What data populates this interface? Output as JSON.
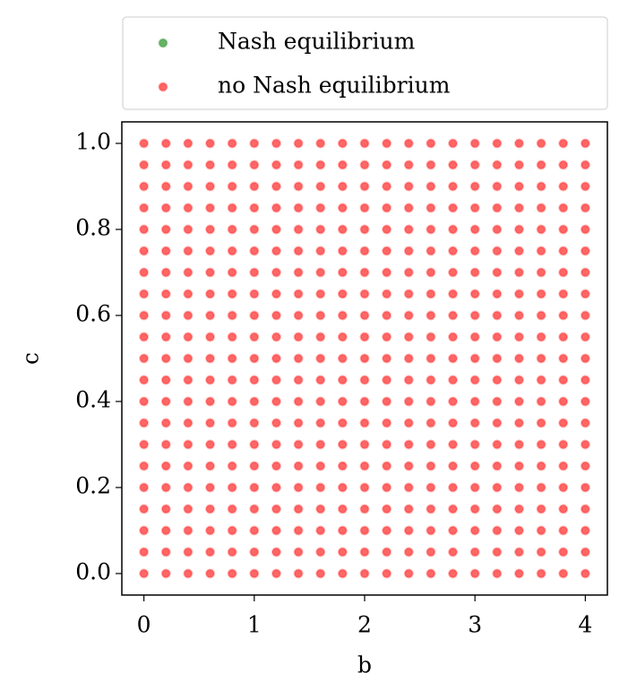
{
  "chart_data": {
    "type": "scatter",
    "xlabel": "b",
    "ylabel": "c",
    "xlim": [
      -0.2,
      4.2
    ],
    "ylim": [
      -0.05,
      1.05
    ],
    "xticks": [
      0,
      1,
      2,
      3,
      4
    ],
    "yticks": [
      {
        "value": 0,
        "label": "0.0"
      },
      0.2,
      0.4,
      0.6,
      0.8,
      {
        "value": 1,
        "label": "1.0"
      }
    ],
    "legend": "top",
    "series": [
      {
        "name": "Nash equilibrium",
        "color": "green",
        "x": [],
        "y": []
      },
      {
        "name": "no Nash equilibrium",
        "color": "red",
        "x": [
          0,
          0.2,
          0.4,
          0.6,
          0.8,
          1,
          1.2,
          1.4,
          1.6,
          1.8,
          2,
          2.2,
          2.4,
          2.6,
          2.8,
          3,
          3.2,
          3.4,
          3.6,
          3.8,
          4,
          0,
          0.2,
          0.4,
          0.6,
          0.8,
          1,
          1.2,
          1.4,
          1.6,
          1.8,
          2,
          2.2,
          2.4,
          2.6,
          2.8,
          3,
          3.2,
          3.4,
          3.6,
          3.8,
          4,
          0,
          0.2,
          0.4,
          0.6,
          0.8,
          1,
          1.2,
          1.4,
          1.6,
          1.8,
          2,
          2.2,
          2.4,
          2.6,
          2.8,
          3,
          3.2,
          3.4,
          3.6,
          3.8,
          4,
          0,
          0.2,
          0.4,
          0.6,
          0.8,
          1,
          1.2,
          1.4,
          1.6,
          1.8,
          2,
          2.2,
          2.4,
          2.6,
          2.8,
          3,
          3.2,
          3.4,
          3.6,
          3.8,
          4,
          0,
          0.2,
          0.4,
          0.6,
          0.8,
          1,
          1.2,
          1.4,
          1.6,
          1.8,
          2,
          2.2,
          2.4,
          2.6,
          2.8,
          3,
          3.2,
          3.4,
          3.6,
          3.8,
          4,
          0,
          0.2,
          0.4,
          0.6,
          0.8,
          1,
          1.2,
          1.4,
          1.6,
          1.8,
          2,
          2.2,
          2.4,
          2.6,
          2.8,
          3,
          3.2,
          3.4,
          3.6,
          3.8,
          4,
          0,
          0.2,
          0.4,
          0.6,
          0.8,
          1,
          1.2,
          1.4,
          1.6,
          1.8,
          2,
          2.2,
          2.4,
          2.6,
          2.8,
          3,
          3.2,
          3.4,
          3.6,
          3.8,
          4,
          0,
          0.2,
          0.4,
          0.6,
          0.8,
          1,
          1.2,
          1.4,
          1.6,
          1.8,
          2,
          2.2,
          2.4,
          2.6,
          2.8,
          3,
          3.2,
          3.4,
          3.6,
          3.8,
          4,
          0,
          0.2,
          0.4,
          0.6,
          0.8,
          1,
          1.2,
          1.4,
          1.6,
          1.8,
          2,
          2.2,
          2.4,
          2.6,
          2.8,
          3,
          3.2,
          3.4,
          3.6,
          3.8,
          4,
          0,
          0.2,
          0.4,
          0.6,
          0.8,
          1,
          1.2,
          1.4,
          1.6,
          1.8,
          2,
          2.2,
          2.4,
          2.6,
          2.8,
          3,
          3.2,
          3.4,
          3.6,
          3.8,
          4,
          0,
          0.2,
          0.4,
          0.6,
          0.8,
          1,
          1.2,
          1.4,
          1.6,
          1.8,
          2,
          2.2,
          2.4,
          2.6,
          2.8,
          3,
          3.2,
          3.4,
          3.6,
          3.8,
          4,
          0,
          0.2,
          0.4,
          0.6,
          0.8,
          1,
          1.2,
          1.4,
          1.6,
          1.8,
          2,
          2.2,
          2.4,
          2.6,
          2.8,
          3,
          3.2,
          3.4,
          3.6,
          3.8,
          4,
          0,
          0.2,
          0.4,
          0.6,
          0.8,
          1,
          1.2,
          1.4,
          1.6,
          1.8,
          2,
          2.2,
          2.4,
          2.6,
          2.8,
          3,
          3.2,
          3.4,
          3.6,
          3.8,
          4,
          0,
          0.2,
          0.4,
          0.6,
          0.8,
          1,
          1.2,
          1.4,
          1.6,
          1.8,
          2,
          2.2,
          2.4,
          2.6,
          2.8,
          3,
          3.2,
          3.4,
          3.6,
          3.8,
          4,
          0,
          0.2,
          0.4,
          0.6,
          0.8,
          1,
          1.2,
          1.4,
          1.6,
          1.8,
          2,
          2.2,
          2.4,
          2.6,
          2.8,
          3,
          3.2,
          3.4,
          3.6,
          3.8,
          4,
          0,
          0.2,
          0.4,
          0.6,
          0.8,
          1,
          1.2,
          1.4,
          1.6,
          1.8,
          2,
          2.2,
          2.4,
          2.6,
          2.8,
          3,
          3.2,
          3.4,
          3.6,
          3.8,
          4,
          0,
          0.2,
          0.4,
          0.6,
          0.8,
          1,
          1.2,
          1.4,
          1.6,
          1.8,
          2,
          2.2,
          2.4,
          2.6,
          2.8,
          3,
          3.2,
          3.4,
          3.6,
          3.8,
          4,
          0,
          0.2,
          0.4,
          0.6,
          0.8,
          1,
          1.2,
          1.4,
          1.6,
          1.8,
          2,
          2.2,
          2.4,
          2.6,
          2.8,
          3,
          3.2,
          3.4,
          3.6,
          3.8,
          4,
          0,
          0.2,
          0.4,
          0.6,
          0.8,
          1,
          1.2,
          1.4,
          1.6,
          1.8,
          2,
          2.2,
          2.4,
          2.6,
          2.8,
          3,
          3.2,
          3.4,
          3.6,
          3.8,
          4,
          0,
          0.2,
          0.4,
          0.6,
          0.8,
          1,
          1.2,
          1.4,
          1.6,
          1.8,
          2,
          2.2,
          2.4,
          2.6,
          2.8,
          3,
          3.2,
          3.4,
          3.6,
          3.8,
          4,
          0,
          0.2,
          0.4,
          0.6,
          0.8,
          1,
          1.2,
          1.4,
          1.6,
          1.8,
          2,
          2.2,
          2.4,
          2.6,
          2.8,
          3,
          3.2,
          3.4,
          3.6,
          3.8,
          4
        ],
        "y": [
          0,
          0,
          0,
          0,
          0,
          0,
          0,
          0,
          0,
          0,
          0,
          0,
          0,
          0,
          0,
          0,
          0,
          0,
          0,
          0,
          0,
          0.05,
          0.05,
          0.05,
          0.05,
          0.05,
          0.05,
          0.05,
          0.05,
          0.05,
          0.05,
          0.05,
          0.05,
          0.05,
          0.05,
          0.05,
          0.05,
          0.05,
          0.05,
          0.05,
          0.05,
          0.05,
          0.1,
          0.1,
          0.1,
          0.1,
          0.1,
          0.1,
          0.1,
          0.1,
          0.1,
          0.1,
          0.1,
          0.1,
          0.1,
          0.1,
          0.1,
          0.1,
          0.1,
          0.1,
          0.1,
          0.1,
          0.1,
          0.15,
          0.15,
          0.15,
          0.15,
          0.15,
          0.15,
          0.15,
          0.15,
          0.15,
          0.15,
          0.15,
          0.15,
          0.15,
          0.15,
          0.15,
          0.15,
          0.15,
          0.15,
          0.15,
          0.15,
          0.15,
          0.2,
          0.2,
          0.2,
          0.2,
          0.2,
          0.2,
          0.2,
          0.2,
          0.2,
          0.2,
          0.2,
          0.2,
          0.2,
          0.2,
          0.2,
          0.2,
          0.2,
          0.2,
          0.2,
          0.2,
          0.2,
          0.25,
          0.25,
          0.25,
          0.25,
          0.25,
          0.25,
          0.25,
          0.25,
          0.25,
          0.25,
          0.25,
          0.25,
          0.25,
          0.25,
          0.25,
          0.25,
          0.25,
          0.25,
          0.25,
          0.25,
          0.25,
          0.3,
          0.3,
          0.3,
          0.3,
          0.3,
          0.3,
          0.3,
          0.3,
          0.3,
          0.3,
          0.3,
          0.3,
          0.3,
          0.3,
          0.3,
          0.3,
          0.3,
          0.3,
          0.3,
          0.3,
          0.3,
          0.35,
          0.35,
          0.35,
          0.35,
          0.35,
          0.35,
          0.35,
          0.35,
          0.35,
          0.35,
          0.35,
          0.35,
          0.35,
          0.35,
          0.35,
          0.35,
          0.35,
          0.35,
          0.35,
          0.35,
          0.35,
          0.4,
          0.4,
          0.4,
          0.4,
          0.4,
          0.4,
          0.4,
          0.4,
          0.4,
          0.4,
          0.4,
          0.4,
          0.4,
          0.4,
          0.4,
          0.4,
          0.4,
          0.4,
          0.4,
          0.4,
          0.4,
          0.45,
          0.45,
          0.45,
          0.45,
          0.45,
          0.45,
          0.45,
          0.45,
          0.45,
          0.45,
          0.45,
          0.45,
          0.45,
          0.45,
          0.45,
          0.45,
          0.45,
          0.45,
          0.45,
          0.45,
          0.45,
          0.5,
          0.5,
          0.5,
          0.5,
          0.5,
          0.5,
          0.5,
          0.5,
          0.5,
          0.5,
          0.5,
          0.5,
          0.5,
          0.5,
          0.5,
          0.5,
          0.5,
          0.5,
          0.5,
          0.5,
          0.5,
          0.55,
          0.55,
          0.55,
          0.55,
          0.55,
          0.55,
          0.55,
          0.55,
          0.55,
          0.55,
          0.55,
          0.55,
          0.55,
          0.55,
          0.55,
          0.55,
          0.55,
          0.55,
          0.55,
          0.55,
          0.55,
          0.6,
          0.6,
          0.6,
          0.6,
          0.6,
          0.6,
          0.6,
          0.6,
          0.6,
          0.6,
          0.6,
          0.6,
          0.6,
          0.6,
          0.6,
          0.6,
          0.6,
          0.6,
          0.6,
          0.6,
          0.6,
          0.65,
          0.65,
          0.65,
          0.65,
          0.65,
          0.65,
          0.65,
          0.65,
          0.65,
          0.65,
          0.65,
          0.65,
          0.65,
          0.65,
          0.65,
          0.65,
          0.65,
          0.65,
          0.65,
          0.65,
          0.65,
          0.7,
          0.7,
          0.7,
          0.7,
          0.7,
          0.7,
          0.7,
          0.7,
          0.7,
          0.7,
          0.7,
          0.7,
          0.7,
          0.7,
          0.7,
          0.7,
          0.7,
          0.7,
          0.7,
          0.7,
          0.7,
          0.75,
          0.75,
          0.75,
          0.75,
          0.75,
          0.75,
          0.75,
          0.75,
          0.75,
          0.75,
          0.75,
          0.75,
          0.75,
          0.75,
          0.75,
          0.75,
          0.75,
          0.75,
          0.75,
          0.75,
          0.75,
          0.8,
          0.8,
          0.8,
          0.8,
          0.8,
          0.8,
          0.8,
          0.8,
          0.8,
          0.8,
          0.8,
          0.8,
          0.8,
          0.8,
          0.8,
          0.8,
          0.8,
          0.8,
          0.8,
          0.8,
          0.8,
          0.85,
          0.85,
          0.85,
          0.85,
          0.85,
          0.85,
          0.85,
          0.85,
          0.85,
          0.85,
          0.85,
          0.85,
          0.85,
          0.85,
          0.85,
          0.85,
          0.85,
          0.85,
          0.85,
          0.85,
          0.85,
          0.9,
          0.9,
          0.9,
          0.9,
          0.9,
          0.9,
          0.9,
          0.9,
          0.9,
          0.9,
          0.9,
          0.9,
          0.9,
          0.9,
          0.9,
          0.9,
          0.9,
          0.9,
          0.9,
          0.9,
          0.9,
          0.95,
          0.95,
          0.95,
          0.95,
          0.95,
          0.95,
          0.95,
          0.95,
          0.95,
          0.95,
          0.95,
          0.95,
          0.95,
          0.95,
          0.95,
          0.95,
          0.95,
          0.95,
          0.95,
          0.95,
          0.95,
          1,
          1,
          1,
          1,
          1,
          1,
          1,
          1,
          1,
          1,
          1,
          1,
          1,
          1,
          1,
          1,
          1,
          1,
          1,
          1,
          1
        ]
      }
    ]
  }
}
